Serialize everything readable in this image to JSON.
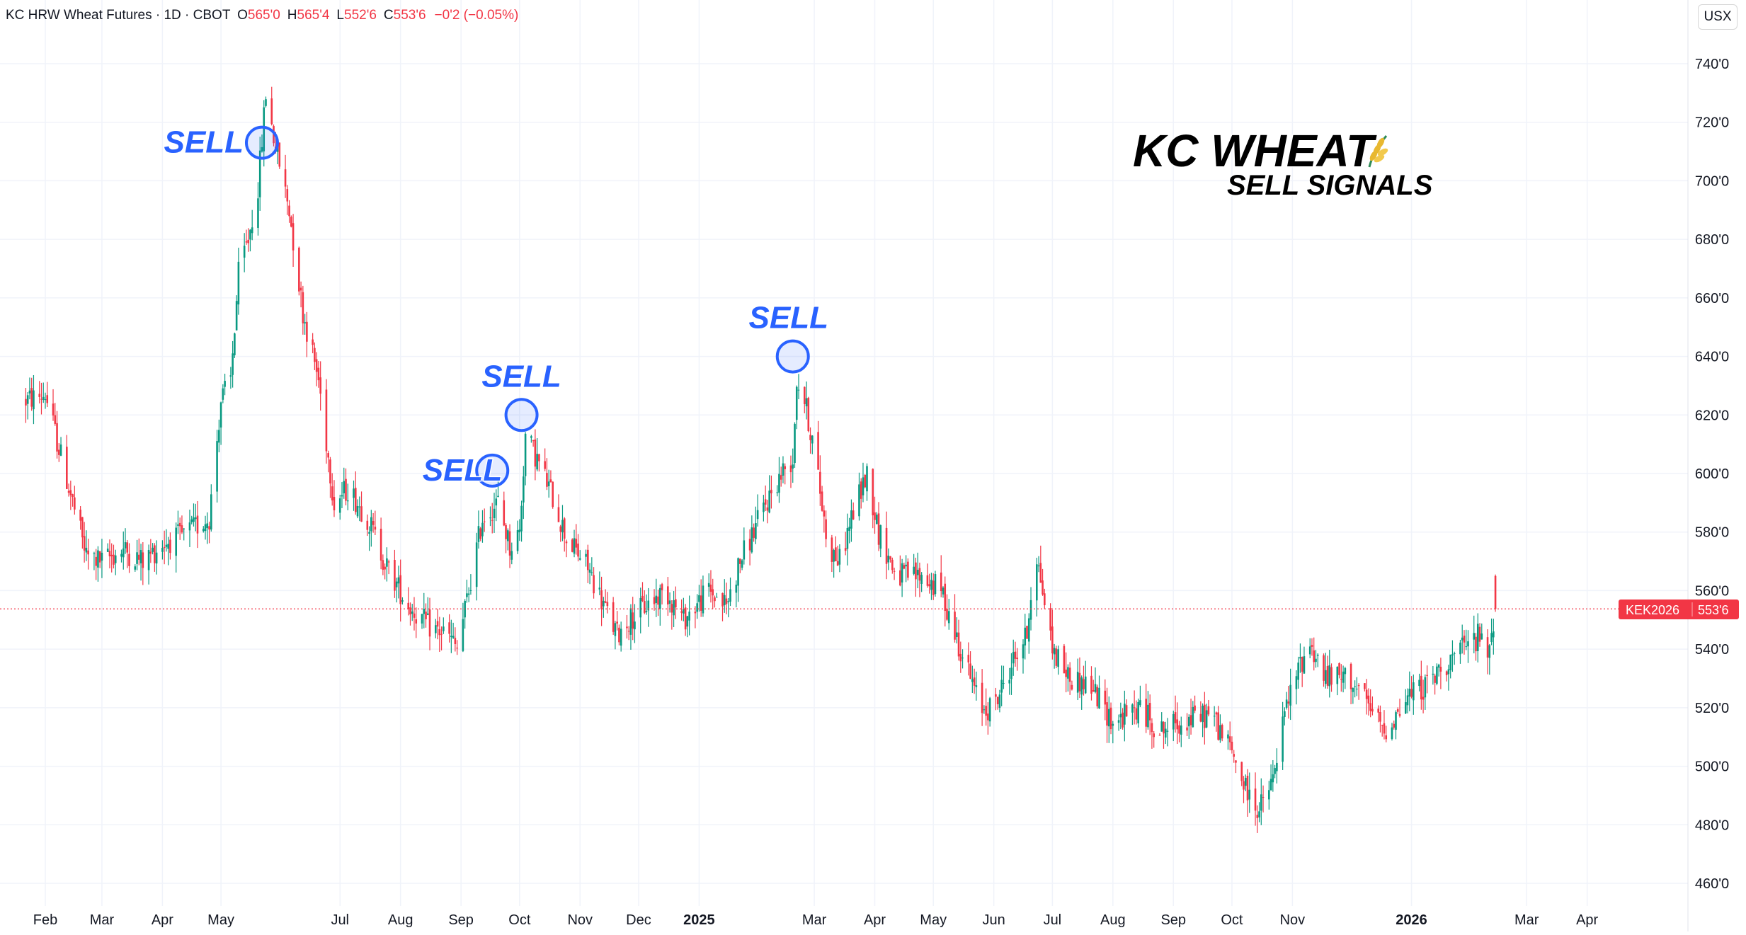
{
  "header": {
    "symbol_name": "KC HRW Wheat Futures · 1D · CBOT",
    "open_label": "O",
    "open_value": "565'0",
    "high_label": "H",
    "high_value": "565'4",
    "low_label": "L",
    "low_value": "552'6",
    "close_label": "C",
    "close_value": "553'6",
    "change_value": "−0'2 (−0.05%)",
    "currency_button": "USX"
  },
  "overlay": {
    "title_line1": "KC WHEAT",
    "title_icon": "wheat-icon",
    "title_line2": "SELL SIGNALS",
    "sell_label": "SELL"
  },
  "price_tag": {
    "symbol": "KEK2026",
    "price": "553'6"
  },
  "colors": {
    "up": "#089981",
    "down": "#f23645",
    "sell_blue": "#2962ff",
    "grid": "#f0f3fa",
    "axis_text": "#131722",
    "header_values": "#f23645",
    "price_line": "#f23645"
  },
  "chart_data": {
    "type": "candlestick",
    "timeframe": "1D",
    "ylim": [
      455,
      752
    ],
    "y_ticks": [
      "740'0",
      "720'0",
      "700'0",
      "680'0",
      "660'0",
      "640'0",
      "620'0",
      "600'0",
      "580'0",
      "560'0",
      "540'0",
      "520'0",
      "500'0",
      "480'0",
      "460'0"
    ],
    "x_ticks": [
      "Feb",
      "Mar",
      "Apr",
      "May",
      "Jul",
      "Aug",
      "Sep",
      "Oct",
      "Nov",
      "Dec",
      "2025",
      "Mar",
      "Apr",
      "May",
      "Jun",
      "Jul",
      "Aug",
      "Sep",
      "Oct",
      "Nov",
      "2026",
      "Mar",
      "Apr"
    ],
    "bold_x_ticks": [
      "2025",
      "2026"
    ],
    "last_price": 553.75,
    "path_points": [
      [
        "2024-01-22",
        625
      ],
      [
        "2024-02-01",
        627
      ],
      [
        "2024-02-12",
        598
      ],
      [
        "2024-02-22",
        572
      ],
      [
        "2024-03-01",
        570
      ],
      [
        "2024-03-12",
        574
      ],
      [
        "2024-03-22",
        570
      ],
      [
        "2024-04-01",
        576
      ],
      [
        "2024-04-12",
        579
      ],
      [
        "2024-04-25",
        585
      ],
      [
        "2024-05-01",
        625
      ],
      [
        "2024-05-06",
        632
      ],
      [
        "2024-05-10",
        668
      ],
      [
        "2024-05-15",
        680
      ],
      [
        "2024-05-20",
        698
      ],
      [
        "2024-05-24",
        730
      ],
      [
        "2024-05-28",
        715
      ],
      [
        "2024-06-05",
        690
      ],
      [
        "2024-06-12",
        655
      ],
      [
        "2024-06-20",
        632
      ],
      [
        "2024-06-28",
        590
      ],
      [
        "2024-07-05",
        595
      ],
      [
        "2024-07-15",
        585
      ],
      [
        "2024-07-25",
        568
      ],
      [
        "2024-08-05",
        555
      ],
      [
        "2024-08-15",
        548
      ],
      [
        "2024-08-25",
        545
      ],
      [
        "2024-08-30",
        540
      ],
      [
        "2024-09-05",
        560
      ],
      [
        "2024-09-12",
        585
      ],
      [
        "2024-09-20",
        590
      ],
      [
        "2024-09-26",
        575
      ],
      [
        "2024-10-01",
        580
      ],
      [
        "2024-10-04",
        613
      ],
      [
        "2024-10-10",
        605
      ],
      [
        "2024-10-18",
        592
      ],
      [
        "2024-10-25",
        578
      ],
      [
        "2024-11-05",
        568
      ],
      [
        "2024-11-15",
        552
      ],
      [
        "2024-11-20",
        545
      ],
      [
        "2024-11-26",
        550
      ],
      [
        "2024-12-05",
        555
      ],
      [
        "2024-12-15",
        560
      ],
      [
        "2024-12-24",
        550
      ],
      [
        "2025-01-06",
        560
      ],
      [
        "2025-01-15",
        555
      ],
      [
        "2025-01-22",
        570
      ],
      [
        "2025-02-01",
        585
      ],
      [
        "2025-02-08",
        595
      ],
      [
        "2025-02-14",
        602
      ],
      [
        "2025-02-18",
        605
      ],
      [
        "2025-02-20",
        632
      ],
      [
        "2025-02-24",
        625
      ],
      [
        "2025-03-01",
        608
      ],
      [
        "2025-03-08",
        575
      ],
      [
        "2025-03-14",
        570
      ],
      [
        "2025-03-20",
        585
      ],
      [
        "2025-03-28",
        600
      ],
      [
        "2025-04-03",
        580
      ],
      [
        "2025-04-12",
        565
      ],
      [
        "2025-04-25",
        565
      ],
      [
        "2025-05-05",
        560
      ],
      [
        "2025-05-15",
        540
      ],
      [
        "2025-05-25",
        520
      ],
      [
        "2025-06-01",
        520
      ],
      [
        "2025-06-10",
        535
      ],
      [
        "2025-06-18",
        545
      ],
      [
        "2025-06-22",
        575
      ],
      [
        "2025-06-26",
        560
      ],
      [
        "2025-07-01",
        540
      ],
      [
        "2025-07-10",
        530
      ],
      [
        "2025-07-20",
        528
      ],
      [
        "2025-08-01",
        515
      ],
      [
        "2025-08-15",
        520
      ],
      [
        "2025-08-25",
        512
      ],
      [
        "2025-09-05",
        515
      ],
      [
        "2025-09-20",
        518
      ],
      [
        "2025-10-01",
        505
      ],
      [
        "2025-10-08",
        492
      ],
      [
        "2025-10-15",
        485
      ],
      [
        "2025-10-22",
        495
      ],
      [
        "2025-10-28",
        518
      ],
      [
        "2025-11-05",
        535
      ],
      [
        "2025-11-10",
        542
      ],
      [
        "2025-11-18",
        530
      ],
      [
        "2025-12-01",
        530
      ],
      [
        "2025-12-10",
        520
      ],
      [
        "2025-12-18",
        512
      ],
      [
        "2026-01-01",
        525
      ],
      [
        "2026-01-10",
        528
      ],
      [
        "2026-01-18",
        535
      ],
      [
        "2026-01-28",
        540
      ],
      [
        "2026-02-05",
        545
      ],
      [
        "2026-02-08",
        535
      ],
      [
        "2026-02-13",
        553.75
      ]
    ],
    "sell_signals": [
      {
        "label": "SELL",
        "date": "2024-05-22",
        "price": 713
      },
      {
        "label": "SELL",
        "date": "2024-09-17",
        "price": 601
      },
      {
        "label": "SELL",
        "date": "2024-10-02",
        "price": 620
      },
      {
        "label": "SELL",
        "date": "2025-02-18",
        "price": 640
      }
    ],
    "annotations": [
      "KC WHEAT",
      "SELL SIGNALS",
      "SELL"
    ]
  }
}
